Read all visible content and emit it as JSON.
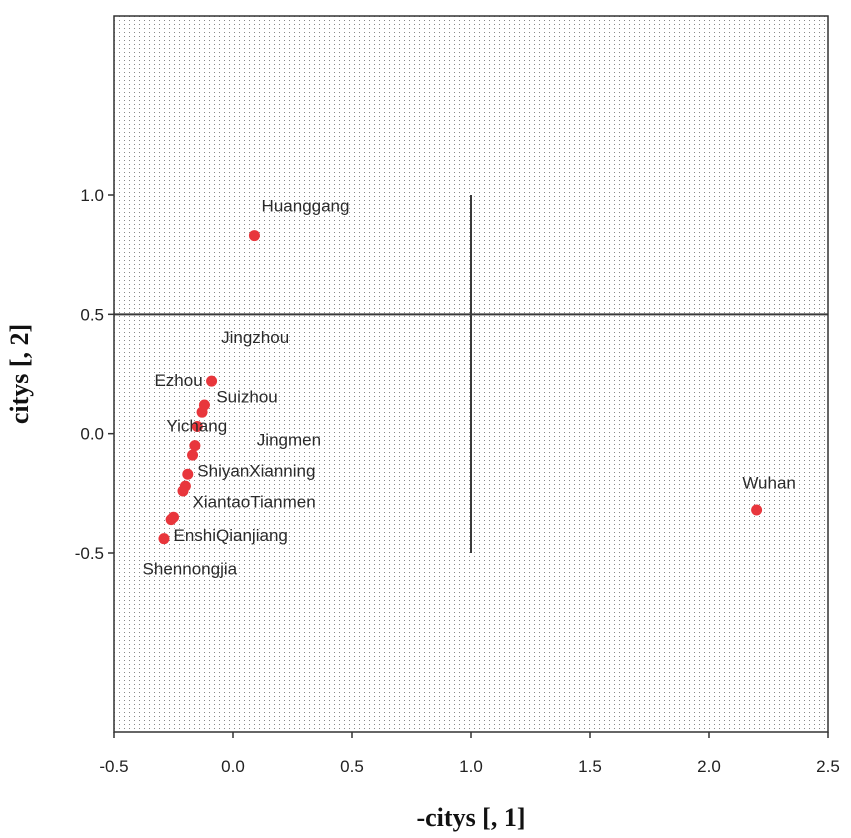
{
  "chart_data": {
    "type": "scatter",
    "title": "",
    "xlabel": "-citys [, 1]",
    "ylabel": "citys [, 2]",
    "xlim": [
      -0.5,
      2.5
    ],
    "ylim": [
      -1.25,
      1.75
    ],
    "xticks": [
      -0.5,
      0.0,
      0.5,
      1.0,
      1.5,
      2.0,
      2.5
    ],
    "xtick_labels": [
      "-0.5",
      "0.0",
      "0.5",
      "1.0",
      "1.5",
      "2.0",
      "2.5"
    ],
    "yticks": [
      -0.5,
      0.0,
      0.5,
      1.0
    ],
    "ytick_labels": [
      "-0.5",
      "0.0",
      "0.5",
      "1.0"
    ],
    "grid": "dotted background",
    "reference_lines": {
      "horizontal_y": 0.5,
      "vertical_x": 1.0,
      "vertical_y_range": [
        -0.5,
        1.0
      ]
    },
    "marker_color": "#e8363c",
    "points": [
      {
        "x": 0.09,
        "y": 0.83,
        "label": "Huanggang"
      },
      {
        "x": -0.09,
        "y": 0.22,
        "label": "Jingzhou"
      },
      {
        "x": -0.12,
        "y": 0.12,
        "label": "Ezhou"
      },
      {
        "x": -0.13,
        "y": 0.09,
        "label": "Suizhou"
      },
      {
        "x": -0.15,
        "y": 0.03,
        "label": "Yichang"
      },
      {
        "x": -0.16,
        "y": -0.05,
        "label": "Jingmen"
      },
      {
        "x": -0.17,
        "y": -0.09,
        "label": "Xianning"
      },
      {
        "x": -0.19,
        "y": -0.17,
        "label": "Shiyan"
      },
      {
        "x": -0.2,
        "y": -0.22,
        "label": "Tianmen"
      },
      {
        "x": -0.21,
        "y": -0.24,
        "label": "Xiantao"
      },
      {
        "x": -0.25,
        "y": -0.35,
        "label": "Qianjiang"
      },
      {
        "x": -0.26,
        "y": -0.36,
        "label": "Enshi"
      },
      {
        "x": -0.29,
        "y": -0.44,
        "label": "Shennongjia"
      },
      {
        "x": 2.2,
        "y": -0.32,
        "label": "Wuhan"
      }
    ],
    "labels": [
      {
        "text": "Huanggang",
        "x": 0.12,
        "y": 0.93
      },
      {
        "text": "Jingzhou",
        "x": -0.05,
        "y": 0.38
      },
      {
        "text": "Ezhou",
        "x": -0.33,
        "y": 0.2
      },
      {
        "text": "Suizhou",
        "x": -0.07,
        "y": 0.13
      },
      {
        "text": "Yichang",
        "x": -0.28,
        "y": 0.01
      },
      {
        "text": "Jingmen",
        "x": 0.1,
        "y": -0.05
      },
      {
        "text": "ShiyanXianning",
        "x": -0.15,
        "y": -0.18
      },
      {
        "text": "XiantaoTianmen",
        "x": -0.17,
        "y": -0.31
      },
      {
        "text": "EnshiQianjiang",
        "x": -0.25,
        "y": -0.45
      },
      {
        "text": "Shennongjia",
        "x": -0.38,
        "y": -0.59
      },
      {
        "text": "Wuhan",
        "x": 2.14,
        "y": -0.23
      }
    ]
  }
}
